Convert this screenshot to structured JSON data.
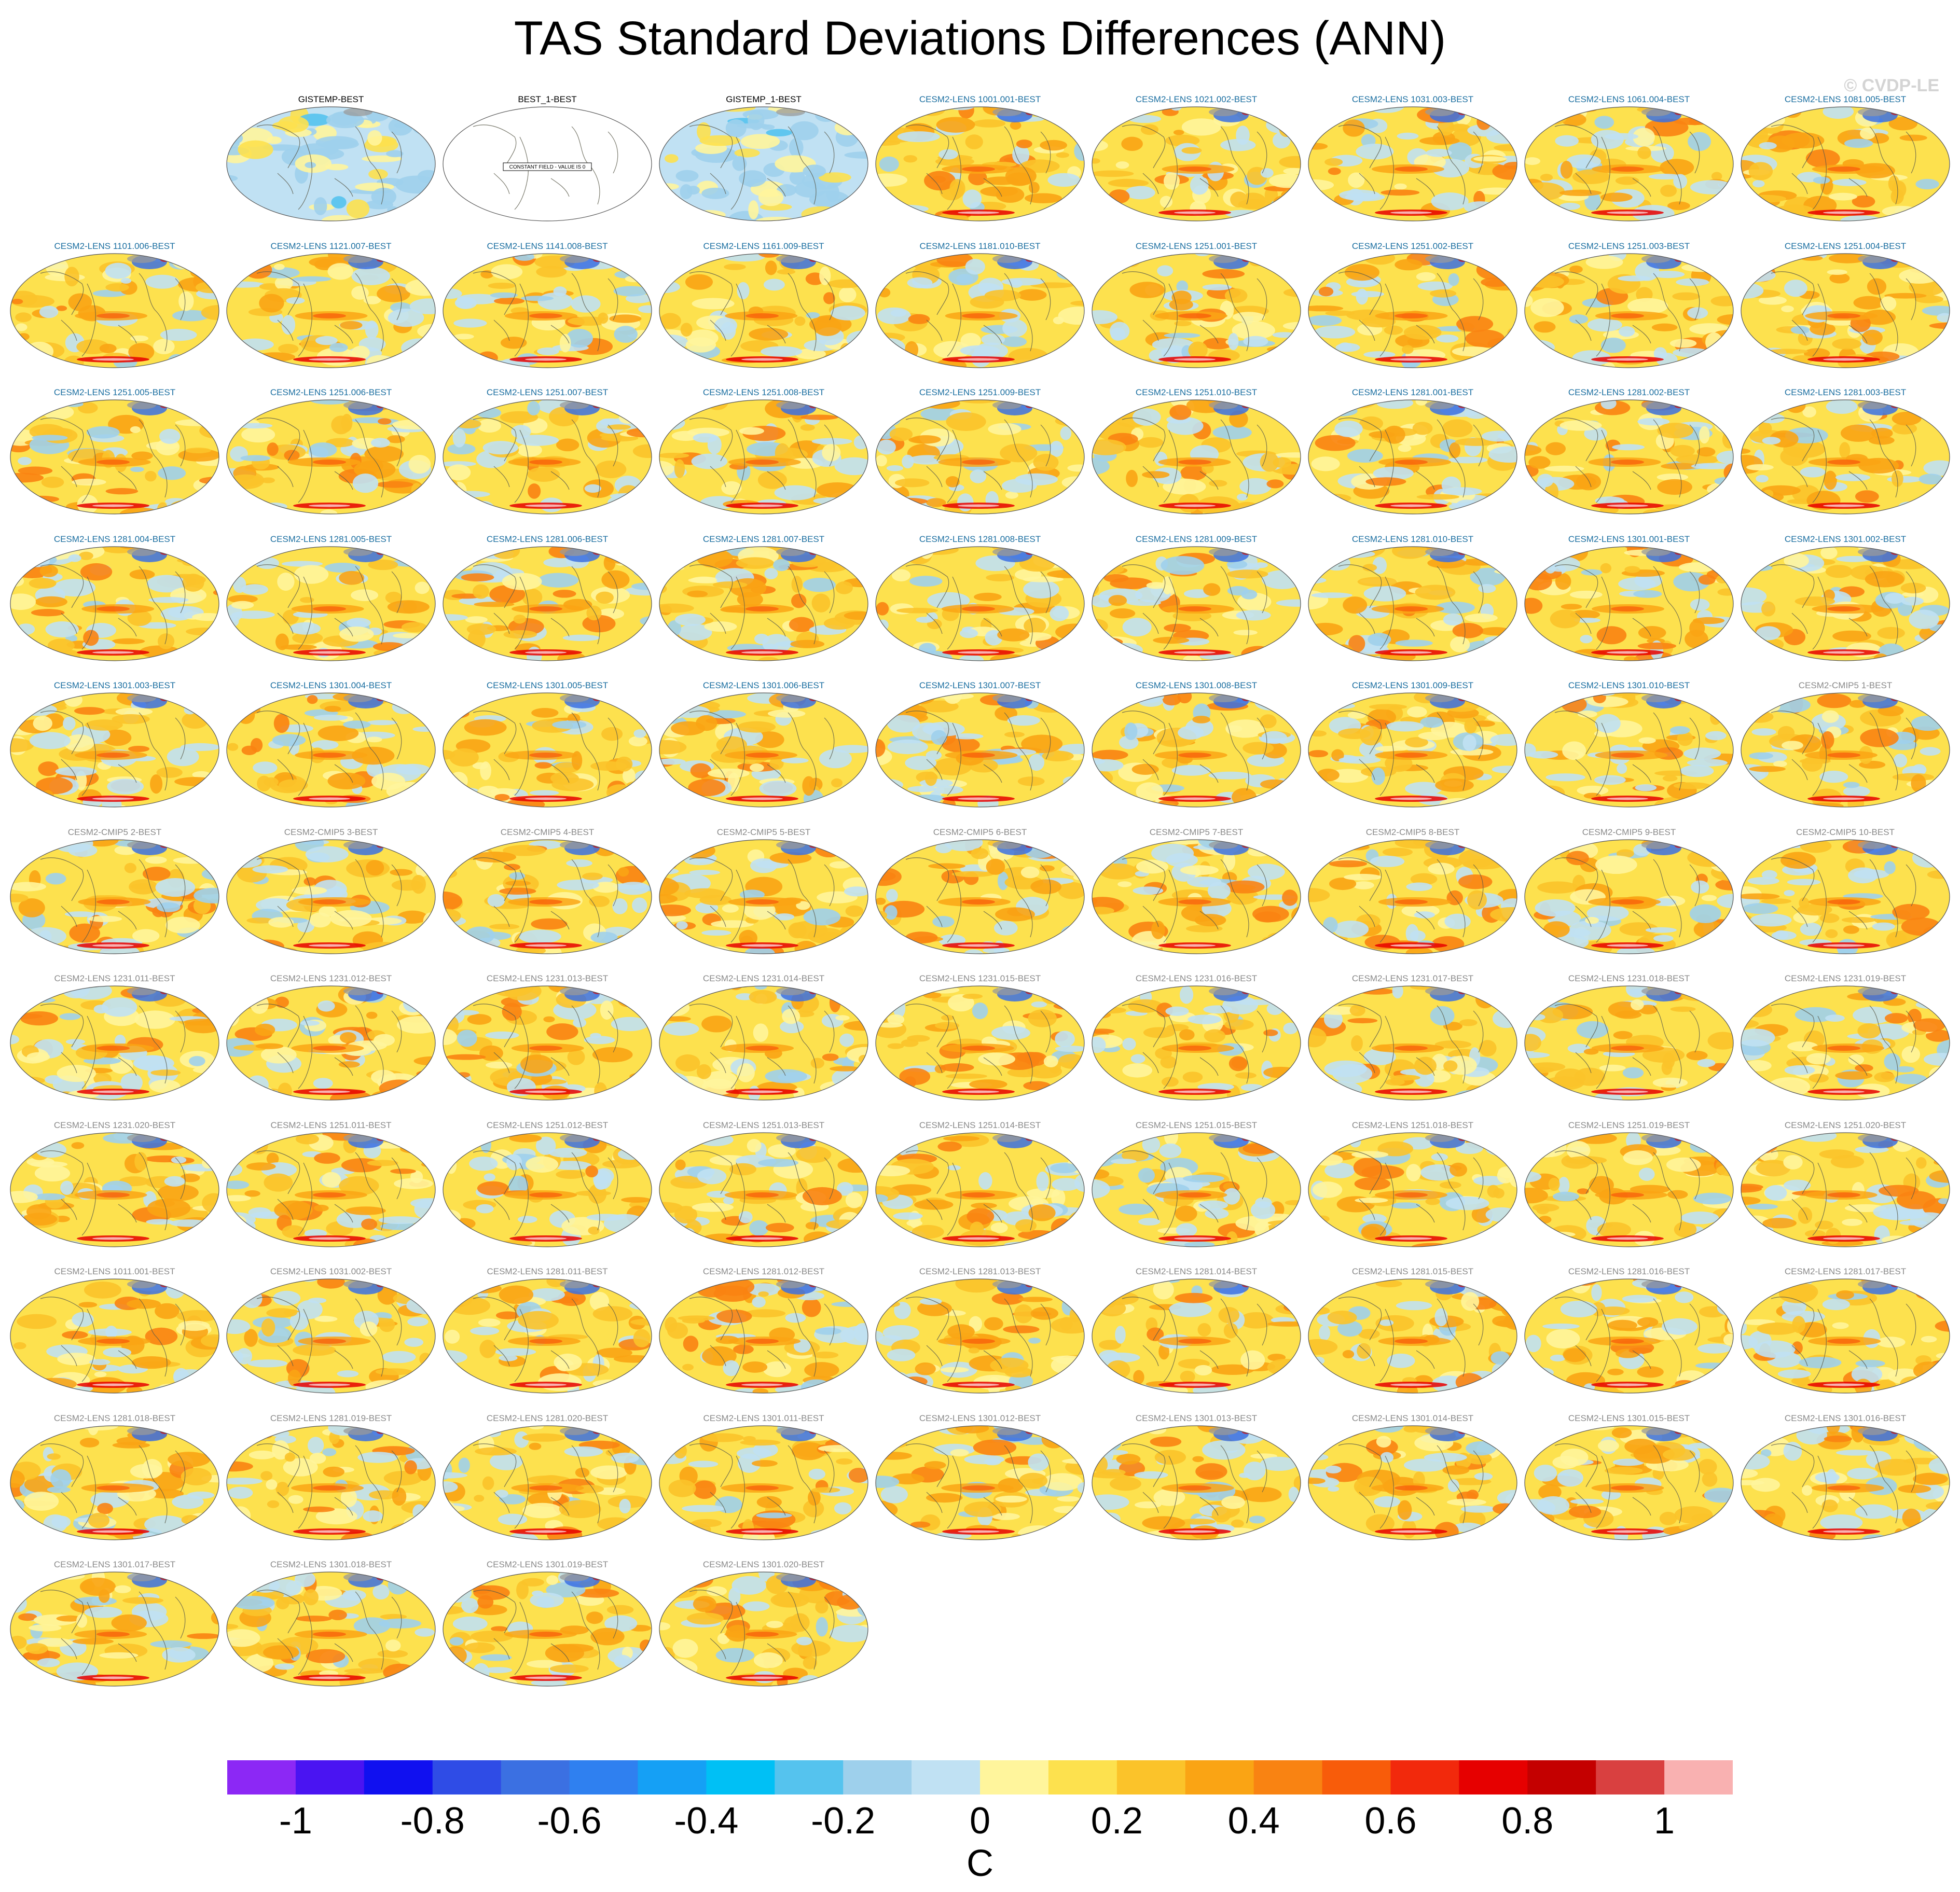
{
  "title": "TAS Standard Deviations Differences (ANN)",
  "watermark": "© CVDP-LE",
  "colors": {
    "obs_title": "#000000",
    "lens_title": "#1a6ea0",
    "other_title": "#8a8a8a"
  },
  "panels": [
    {
      "label": "GISTEMP-BEST",
      "kind": "obs"
    },
    {
      "label": "BEST_1-BEST",
      "kind": "constant",
      "note": "CONSTANT FIELD - VALUE IS 0"
    },
    {
      "label": "GISTEMP_1-BEST",
      "kind": "obs"
    },
    {
      "label": "CESM2-LENS 1001.001-BEST",
      "kind": "lens"
    },
    {
      "label": "CESM2-LENS 1021.002-BEST",
      "kind": "lens"
    },
    {
      "label": "CESM2-LENS 1031.003-BEST",
      "kind": "lens"
    },
    {
      "label": "CESM2-LENS 1061.004-BEST",
      "kind": "lens"
    },
    {
      "label": "CESM2-LENS 1081.005-BEST",
      "kind": "lens"
    },
    {
      "label": "CESM2-LENS 1101.006-BEST",
      "kind": "lens"
    },
    {
      "label": "CESM2-LENS 1121.007-BEST",
      "kind": "lens"
    },
    {
      "label": "CESM2-LENS 1141.008-BEST",
      "kind": "lens"
    },
    {
      "label": "CESM2-LENS 1161.009-BEST",
      "kind": "lens"
    },
    {
      "label": "CESM2-LENS 1181.010-BEST",
      "kind": "lens"
    },
    {
      "label": "CESM2-LENS 1251.001-BEST",
      "kind": "lens"
    },
    {
      "label": "CESM2-LENS 1251.002-BEST",
      "kind": "lens"
    },
    {
      "label": "CESM2-LENS 1251.003-BEST",
      "kind": "lens"
    },
    {
      "label": "CESM2-LENS 1251.004-BEST",
      "kind": "lens"
    },
    {
      "label": "CESM2-LENS 1251.005-BEST",
      "kind": "lens"
    },
    {
      "label": "CESM2-LENS 1251.006-BEST",
      "kind": "lens"
    },
    {
      "label": "CESM2-LENS 1251.007-BEST",
      "kind": "lens"
    },
    {
      "label": "CESM2-LENS 1251.008-BEST",
      "kind": "lens"
    },
    {
      "label": "CESM2-LENS 1251.009-BEST",
      "kind": "lens"
    },
    {
      "label": "CESM2-LENS 1251.010-BEST",
      "kind": "lens"
    },
    {
      "label": "CESM2-LENS 1281.001-BEST",
      "kind": "lens"
    },
    {
      "label": "CESM2-LENS 1281.002-BEST",
      "kind": "lens"
    },
    {
      "label": "CESM2-LENS 1281.003-BEST",
      "kind": "lens"
    },
    {
      "label": "CESM2-LENS 1281.004-BEST",
      "kind": "lens"
    },
    {
      "label": "CESM2-LENS 1281.005-BEST",
      "kind": "lens"
    },
    {
      "label": "CESM2-LENS 1281.006-BEST",
      "kind": "lens"
    },
    {
      "label": "CESM2-LENS 1281.007-BEST",
      "kind": "lens"
    },
    {
      "label": "CESM2-LENS 1281.008-BEST",
      "kind": "lens"
    },
    {
      "label": "CESM2-LENS 1281.009-BEST",
      "kind": "lens"
    },
    {
      "label": "CESM2-LENS 1281.010-BEST",
      "kind": "lens"
    },
    {
      "label": "CESM2-LENS 1301.001-BEST",
      "kind": "lens"
    },
    {
      "label": "CESM2-LENS 1301.002-BEST",
      "kind": "lens"
    },
    {
      "label": "CESM2-LENS 1301.003-BEST",
      "kind": "lens"
    },
    {
      "label": "CESM2-LENS 1301.004-BEST",
      "kind": "lens"
    },
    {
      "label": "CESM2-LENS 1301.005-BEST",
      "kind": "lens"
    },
    {
      "label": "CESM2-LENS 1301.006-BEST",
      "kind": "lens"
    },
    {
      "label": "CESM2-LENS 1301.007-BEST",
      "kind": "lens"
    },
    {
      "label": "CESM2-LENS 1301.008-BEST",
      "kind": "lens"
    },
    {
      "label": "CESM2-LENS 1301.009-BEST",
      "kind": "lens"
    },
    {
      "label": "CESM2-LENS 1301.010-BEST",
      "kind": "lens"
    },
    {
      "label": "CESM2-CMIP5 1-BEST",
      "kind": "other"
    },
    {
      "label": "CESM2-CMIP5 2-BEST",
      "kind": "other"
    },
    {
      "label": "CESM2-CMIP5 3-BEST",
      "kind": "other"
    },
    {
      "label": "CESM2-CMIP5 4-BEST",
      "kind": "other"
    },
    {
      "label": "CESM2-CMIP5 5-BEST",
      "kind": "other"
    },
    {
      "label": "CESM2-CMIP5 6-BEST",
      "kind": "other"
    },
    {
      "label": "CESM2-CMIP5 7-BEST",
      "kind": "other"
    },
    {
      "label": "CESM2-CMIP5 8-BEST",
      "kind": "other"
    },
    {
      "label": "CESM2-CMIP5 9-BEST",
      "kind": "other"
    },
    {
      "label": "CESM2-CMIP5 10-BEST",
      "kind": "other"
    },
    {
      "label": "CESM2-LENS 1231.011-BEST",
      "kind": "other"
    },
    {
      "label": "CESM2-LENS 1231.012-BEST",
      "kind": "other"
    },
    {
      "label": "CESM2-LENS 1231.013-BEST",
      "kind": "other"
    },
    {
      "label": "CESM2-LENS 1231.014-BEST",
      "kind": "other"
    },
    {
      "label": "CESM2-LENS 1231.015-BEST",
      "kind": "other"
    },
    {
      "label": "CESM2-LENS 1231.016-BEST",
      "kind": "other"
    },
    {
      "label": "CESM2-LENS 1231.017-BEST",
      "kind": "other"
    },
    {
      "label": "CESM2-LENS 1231.018-BEST",
      "kind": "other"
    },
    {
      "label": "CESM2-LENS 1231.019-BEST",
      "kind": "other"
    },
    {
      "label": "CESM2-LENS 1231.020-BEST",
      "kind": "other"
    },
    {
      "label": "CESM2-LENS 1251.011-BEST",
      "kind": "other"
    },
    {
      "label": "CESM2-LENS 1251.012-BEST",
      "kind": "other"
    },
    {
      "label": "CESM2-LENS 1251.013-BEST",
      "kind": "other"
    },
    {
      "label": "CESM2-LENS 1251.014-BEST",
      "kind": "other"
    },
    {
      "label": "CESM2-LENS 1251.015-BEST",
      "kind": "other"
    },
    {
      "label": "CESM2-LENS 1251.018-BEST",
      "kind": "other"
    },
    {
      "label": "CESM2-LENS 1251.019-BEST",
      "kind": "other"
    },
    {
      "label": "CESM2-LENS 1251.020-BEST",
      "kind": "other"
    },
    {
      "label": "CESM2-LENS 1011.001-BEST",
      "kind": "other"
    },
    {
      "label": "CESM2-LENS 1031.002-BEST",
      "kind": "other"
    },
    {
      "label": "CESM2-LENS 1281.011-BEST",
      "kind": "other"
    },
    {
      "label": "CESM2-LENS 1281.012-BEST",
      "kind": "other"
    },
    {
      "label": "CESM2-LENS 1281.013-BEST",
      "kind": "other"
    },
    {
      "label": "CESM2-LENS 1281.014-BEST",
      "kind": "other"
    },
    {
      "label": "CESM2-LENS 1281.015-BEST",
      "kind": "other"
    },
    {
      "label": "CESM2-LENS 1281.016-BEST",
      "kind": "other"
    },
    {
      "label": "CESM2-LENS 1281.017-BEST",
      "kind": "other"
    },
    {
      "label": "CESM2-LENS 1281.018-BEST",
      "kind": "other"
    },
    {
      "label": "CESM2-LENS 1281.019-BEST",
      "kind": "other"
    },
    {
      "label": "CESM2-LENS 1281.020-BEST",
      "kind": "other"
    },
    {
      "label": "CESM2-LENS 1301.011-BEST",
      "kind": "other"
    },
    {
      "label": "CESM2-LENS 1301.012-BEST",
      "kind": "other"
    },
    {
      "label": "CESM2-LENS 1301.013-BEST",
      "kind": "other"
    },
    {
      "label": "CESM2-LENS 1301.014-BEST",
      "kind": "other"
    },
    {
      "label": "CESM2-LENS 1301.015-BEST",
      "kind": "other"
    },
    {
      "label": "CESM2-LENS 1301.016-BEST",
      "kind": "other"
    },
    {
      "label": "CESM2-LENS 1301.017-BEST",
      "kind": "other"
    },
    {
      "label": "CESM2-LENS 1301.018-BEST",
      "kind": "other"
    },
    {
      "label": "CESM2-LENS 1301.019-BEST",
      "kind": "other"
    },
    {
      "label": "CESM2-LENS 1301.020-BEST",
      "kind": "other"
    }
  ],
  "colorbar": {
    "colors": [
      "#8c28f5",
      "#4a14f2",
      "#1010f0",
      "#2f4ce6",
      "#3b70e2",
      "#2f80f0",
      "#15a0f5",
      "#00c0f5",
      "#55c3ee",
      "#9ed0ec",
      "#c0e1f3",
      "#fff59c",
      "#fde14e",
      "#fbc32a",
      "#faa414",
      "#f98312",
      "#f85c0a",
      "#f2290c",
      "#e60000",
      "#c40000",
      "#d94040",
      "#f9b1b1"
    ],
    "ticks": [
      "-1",
      "-0.8",
      "-0.6",
      "-0.4",
      "-0.2",
      "0",
      "0.2",
      "0.4",
      "0.6",
      "0.8",
      "1"
    ],
    "units": "C"
  }
}
